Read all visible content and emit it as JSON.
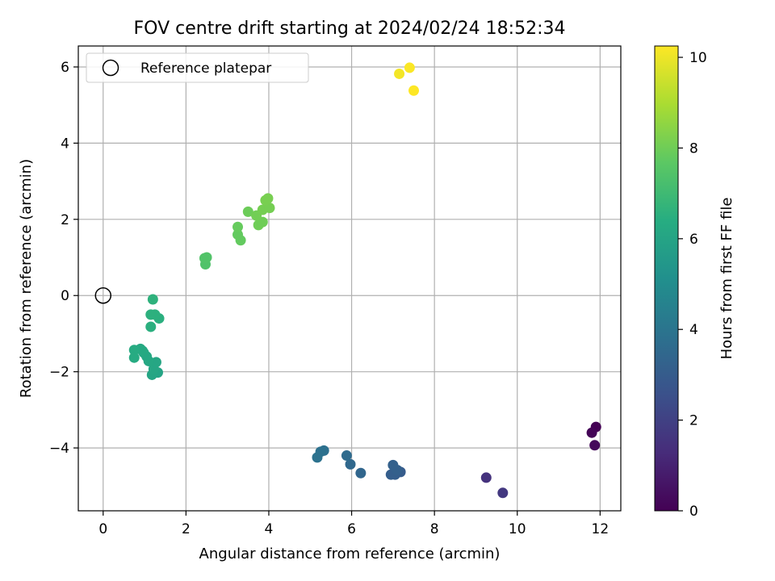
{
  "chart_data": {
    "type": "scatter",
    "title": "FOV centre drift starting at 2024/02/24 18:52:34",
    "xlabel": "Angular distance from reference (arcmin)",
    "ylabel": "Rotation from reference (arcmin)",
    "xlim": [
      -0.6,
      12.5
    ],
    "ylim": [
      -5.65,
      6.55
    ],
    "xticks": [
      0,
      2,
      4,
      6,
      8,
      10,
      12
    ],
    "yticks": [
      -4,
      -2,
      0,
      2,
      4,
      6
    ],
    "grid": true,
    "legend": {
      "placement": "top-left",
      "label": "Reference platepar"
    },
    "reference_point": {
      "x": 0,
      "y": 0
    },
    "colorbar": {
      "label": "Hours from first FF file",
      "range": [
        0,
        10.25
      ],
      "ticks": [
        0,
        2,
        4,
        6,
        8,
        10
      ],
      "colormap": "viridis"
    },
    "points": [
      {
        "x": 11.9,
        "y": -3.45,
        "h": 0.0
      },
      {
        "x": 11.8,
        "y": -3.6,
        "h": 0.1
      },
      {
        "x": 11.87,
        "y": -3.93,
        "h": 0.25
      },
      {
        "x": 9.25,
        "y": -4.78,
        "h": 1.5
      },
      {
        "x": 9.65,
        "y": -5.18,
        "h": 1.7
      },
      {
        "x": 7.18,
        "y": -4.63,
        "h": 3.0
      },
      {
        "x": 7.05,
        "y": -4.7,
        "h": 3.05
      },
      {
        "x": 6.95,
        "y": -4.7,
        "h": 3.1
      },
      {
        "x": 7.1,
        "y": -4.58,
        "h": 3.15
      },
      {
        "x": 7.0,
        "y": -4.45,
        "h": 3.2
      },
      {
        "x": 6.22,
        "y": -4.66,
        "h": 3.4
      },
      {
        "x": 5.97,
        "y": -4.43,
        "h": 3.5
      },
      {
        "x": 5.88,
        "y": -4.2,
        "h": 3.6
      },
      {
        "x": 5.33,
        "y": -4.07,
        "h": 3.8
      },
      {
        "x": 5.25,
        "y": -4.1,
        "h": 3.85
      },
      {
        "x": 5.17,
        "y": -4.25,
        "h": 3.9
      },
      {
        "x": 1.32,
        "y": -2.02,
        "h": 6.0
      },
      {
        "x": 1.18,
        "y": -2.08,
        "h": 6.05
      },
      {
        "x": 1.22,
        "y": -1.93,
        "h": 6.1
      },
      {
        "x": 1.28,
        "y": -1.75,
        "h": 6.1
      },
      {
        "x": 1.1,
        "y": -1.72,
        "h": 6.15
      },
      {
        "x": 1.05,
        "y": -1.6,
        "h": 6.2
      },
      {
        "x": 0.98,
        "y": -1.5,
        "h": 6.2
      },
      {
        "x": 0.9,
        "y": -1.4,
        "h": 6.25
      },
      {
        "x": 0.95,
        "y": -1.45,
        "h": 6.25
      },
      {
        "x": 0.75,
        "y": -1.43,
        "h": 6.3
      },
      {
        "x": 0.75,
        "y": -1.63,
        "h": 6.3
      },
      {
        "x": 1.15,
        "y": -0.82,
        "h": 6.5
      },
      {
        "x": 1.35,
        "y": -0.6,
        "h": 6.5
      },
      {
        "x": 1.25,
        "y": -0.5,
        "h": 6.55
      },
      {
        "x": 1.15,
        "y": -0.5,
        "h": 6.55
      },
      {
        "x": 1.2,
        "y": -0.1,
        "h": 6.6
      },
      {
        "x": 2.47,
        "y": 0.82,
        "h": 7.4
      },
      {
        "x": 2.5,
        "y": 1.0,
        "h": 7.45
      },
      {
        "x": 2.45,
        "y": 0.98,
        "h": 7.45
      },
      {
        "x": 3.32,
        "y": 1.45,
        "h": 7.8
      },
      {
        "x": 3.25,
        "y": 1.6,
        "h": 7.8
      },
      {
        "x": 3.25,
        "y": 1.8,
        "h": 7.85
      },
      {
        "x": 3.5,
        "y": 2.2,
        "h": 7.95
      },
      {
        "x": 3.75,
        "y": 1.85,
        "h": 8.0
      },
      {
        "x": 3.85,
        "y": 1.93,
        "h": 8.0
      },
      {
        "x": 3.7,
        "y": 2.1,
        "h": 8.05
      },
      {
        "x": 3.85,
        "y": 2.25,
        "h": 8.1
      },
      {
        "x": 4.02,
        "y": 2.3,
        "h": 8.1
      },
      {
        "x": 3.92,
        "y": 2.5,
        "h": 8.15
      },
      {
        "x": 3.98,
        "y": 2.55,
        "h": 8.15
      },
      {
        "x": 7.15,
        "y": 5.82,
        "h": 10.1
      },
      {
        "x": 7.4,
        "y": 5.98,
        "h": 10.2
      },
      {
        "x": 7.5,
        "y": 5.38,
        "h": 10.25
      }
    ]
  }
}
